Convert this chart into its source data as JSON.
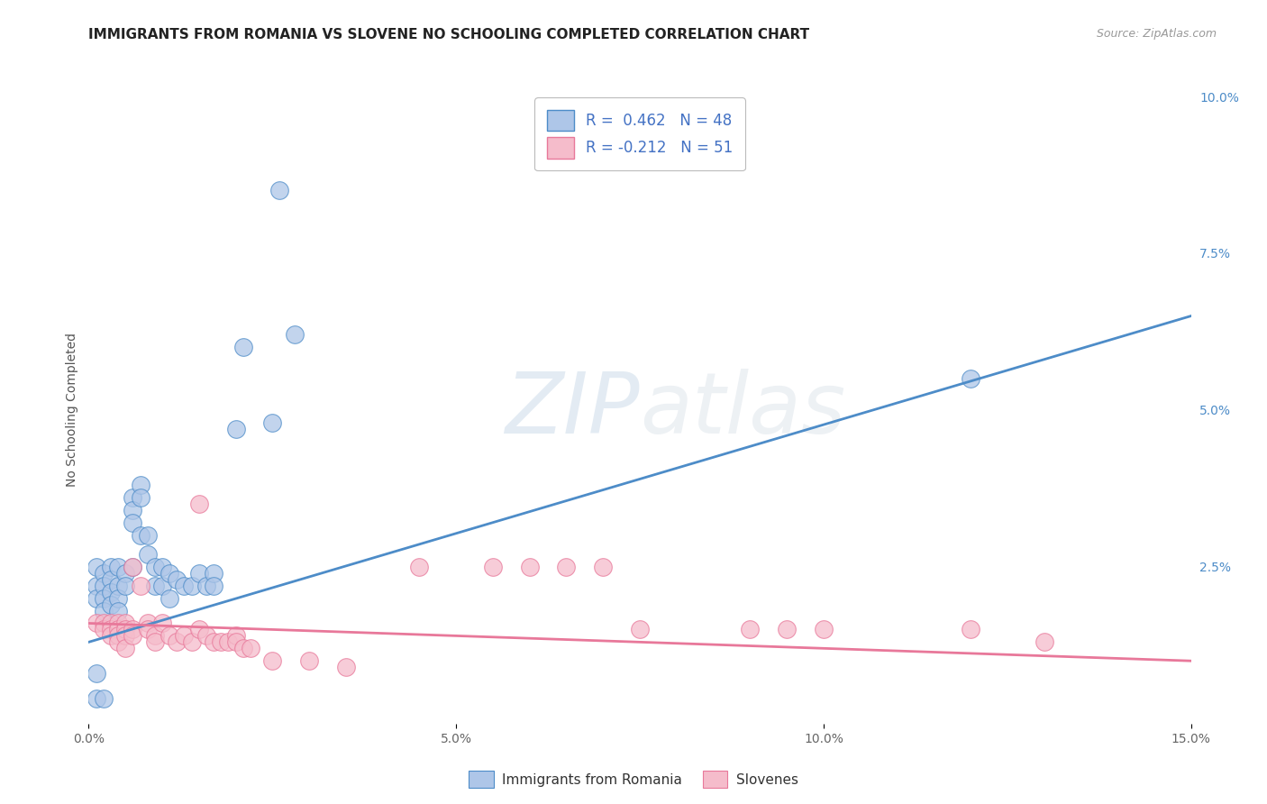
{
  "title": "IMMIGRANTS FROM ROMANIA VS SLOVENE NO SCHOOLING COMPLETED CORRELATION CHART",
  "source": "Source: ZipAtlas.com",
  "ylabel": "No Schooling Completed",
  "x_min": 0.0,
  "x_max": 0.15,
  "y_min": 0.0,
  "y_max": 0.1,
  "x_ticks": [
    0.0,
    0.05,
    0.1,
    0.15
  ],
  "x_tick_labels": [
    "0.0%",
    "5.0%",
    "10.0%",
    "15.0%"
  ],
  "y_ticks_right": [
    0.025,
    0.05,
    0.075,
    0.1
  ],
  "y_tick_labels_right": [
    "2.5%",
    "5.0%",
    "7.5%",
    "10.0%"
  ],
  "legend_blue_label": "Immigrants from Romania",
  "legend_pink_label": "Slovenes",
  "r_blue": 0.462,
  "n_blue": 48,
  "r_pink": -0.212,
  "n_pink": 51,
  "blue_color": "#aec6e8",
  "pink_color": "#f5bccb",
  "blue_line_color": "#4d8cc8",
  "pink_line_color": "#e8789a",
  "grid_color": "#cccccc",
  "background_color": "#ffffff",
  "watermark_zip": "ZIP",
  "watermark_atlas": "atlas",
  "title_fontsize": 11,
  "source_fontsize": 9,
  "blue_scatter": [
    [
      0.001,
      0.025
    ],
    [
      0.001,
      0.022
    ],
    [
      0.001,
      0.02
    ],
    [
      0.002,
      0.024
    ],
    [
      0.002,
      0.022
    ],
    [
      0.002,
      0.02
    ],
    [
      0.002,
      0.018
    ],
    [
      0.003,
      0.025
    ],
    [
      0.003,
      0.023
    ],
    [
      0.003,
      0.021
    ],
    [
      0.003,
      0.019
    ],
    [
      0.004,
      0.025
    ],
    [
      0.004,
      0.022
    ],
    [
      0.004,
      0.02
    ],
    [
      0.004,
      0.018
    ],
    [
      0.005,
      0.024
    ],
    [
      0.005,
      0.022
    ],
    [
      0.006,
      0.036
    ],
    [
      0.006,
      0.034
    ],
    [
      0.006,
      0.032
    ],
    [
      0.006,
      0.025
    ],
    [
      0.007,
      0.038
    ],
    [
      0.007,
      0.036
    ],
    [
      0.007,
      0.03
    ],
    [
      0.008,
      0.03
    ],
    [
      0.008,
      0.027
    ],
    [
      0.009,
      0.025
    ],
    [
      0.009,
      0.022
    ],
    [
      0.01,
      0.025
    ],
    [
      0.01,
      0.022
    ],
    [
      0.011,
      0.024
    ],
    [
      0.011,
      0.02
    ],
    [
      0.012,
      0.023
    ],
    [
      0.013,
      0.022
    ],
    [
      0.014,
      0.022
    ],
    [
      0.015,
      0.024
    ],
    [
      0.016,
      0.022
    ],
    [
      0.017,
      0.024
    ],
    [
      0.017,
      0.022
    ],
    [
      0.02,
      0.047
    ],
    [
      0.021,
      0.06
    ],
    [
      0.025,
      0.048
    ],
    [
      0.026,
      0.085
    ],
    [
      0.028,
      0.062
    ],
    [
      0.001,
      0.004
    ],
    [
      0.002,
      0.004
    ],
    [
      0.001,
      0.008
    ],
    [
      0.12,
      0.055
    ]
  ],
  "pink_scatter": [
    [
      0.001,
      0.016
    ],
    [
      0.002,
      0.016
    ],
    [
      0.002,
      0.015
    ],
    [
      0.003,
      0.016
    ],
    [
      0.003,
      0.015
    ],
    [
      0.003,
      0.014
    ],
    [
      0.004,
      0.016
    ],
    [
      0.004,
      0.015
    ],
    [
      0.004,
      0.014
    ],
    [
      0.004,
      0.013
    ],
    [
      0.005,
      0.016
    ],
    [
      0.005,
      0.015
    ],
    [
      0.005,
      0.014
    ],
    [
      0.005,
      0.012
    ],
    [
      0.006,
      0.015
    ],
    [
      0.006,
      0.014
    ],
    [
      0.006,
      0.025
    ],
    [
      0.007,
      0.022
    ],
    [
      0.008,
      0.016
    ],
    [
      0.008,
      0.015
    ],
    [
      0.009,
      0.014
    ],
    [
      0.009,
      0.013
    ],
    [
      0.01,
      0.016
    ],
    [
      0.011,
      0.014
    ],
    [
      0.012,
      0.013
    ],
    [
      0.013,
      0.014
    ],
    [
      0.014,
      0.013
    ],
    [
      0.015,
      0.035
    ],
    [
      0.015,
      0.015
    ],
    [
      0.016,
      0.014
    ],
    [
      0.017,
      0.013
    ],
    [
      0.018,
      0.013
    ],
    [
      0.019,
      0.013
    ],
    [
      0.02,
      0.014
    ],
    [
      0.02,
      0.013
    ],
    [
      0.021,
      0.012
    ],
    [
      0.022,
      0.012
    ],
    [
      0.025,
      0.01
    ],
    [
      0.03,
      0.01
    ],
    [
      0.035,
      0.009
    ],
    [
      0.045,
      0.025
    ],
    [
      0.055,
      0.025
    ],
    [
      0.06,
      0.025
    ],
    [
      0.065,
      0.025
    ],
    [
      0.07,
      0.025
    ],
    [
      0.075,
      0.015
    ],
    [
      0.09,
      0.015
    ],
    [
      0.095,
      0.015
    ],
    [
      0.1,
      0.015
    ],
    [
      0.12,
      0.015
    ],
    [
      0.13,
      0.013
    ]
  ],
  "blue_line_x": [
    0.0,
    0.15
  ],
  "blue_line_y_start": 0.013,
  "blue_line_y_end": 0.065,
  "pink_line_y_start": 0.016,
  "pink_line_y_end": 0.01
}
